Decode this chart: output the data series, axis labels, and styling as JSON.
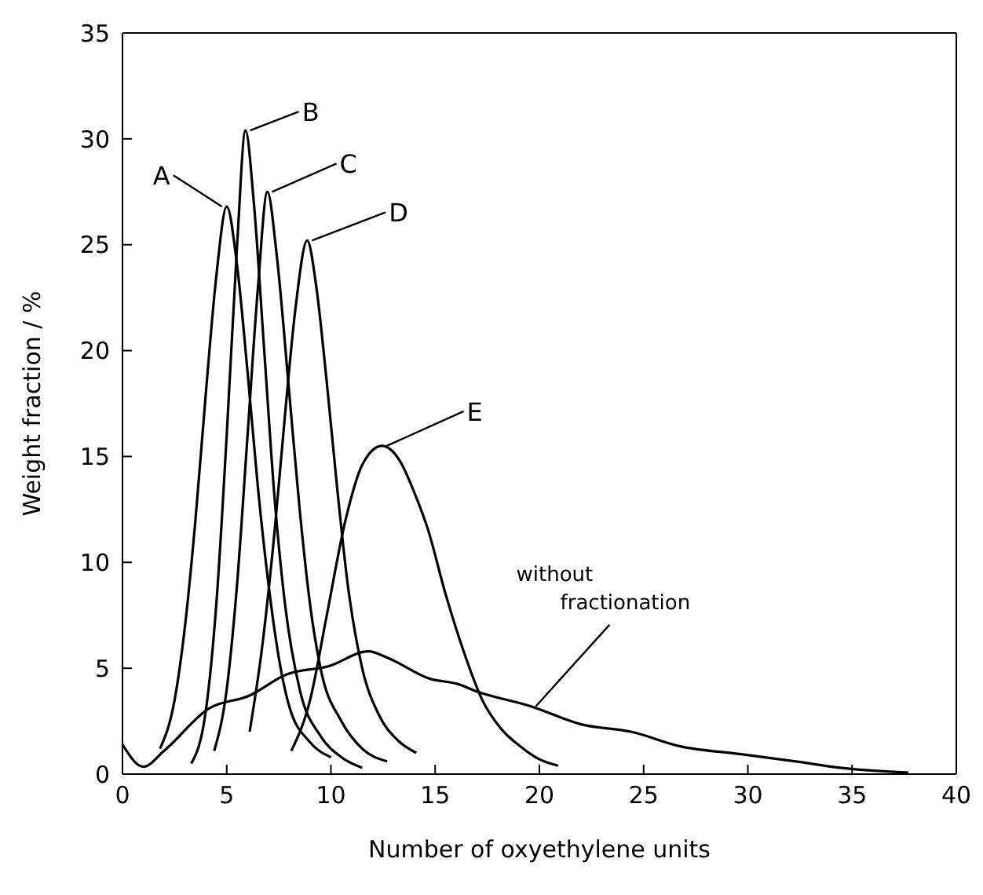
{
  "chart_data": {
    "type": "line",
    "xlabel": "Number of oxyethylene units",
    "ylabel": "Weight  fraction  / %",
    "xlim": [
      0,
      40
    ],
    "ylim": [
      0,
      35
    ],
    "xticks": [
      0,
      5,
      10,
      15,
      20,
      25,
      30,
      35,
      40
    ],
    "yticks": [
      0,
      5,
      10,
      15,
      20,
      25,
      30,
      35
    ],
    "grid": false,
    "legend": "top",
    "series": [
      {
        "name": "A",
        "color": "#000000",
        "x": [
          1.8,
          2.5,
          3,
          3.5,
          4,
          4.5,
          5,
          5.5,
          6,
          6.5,
          7,
          7.5,
          8,
          9,
          10
        ],
        "values": [
          1.2,
          3.5,
          7,
          12,
          18,
          23.5,
          26.8,
          24,
          19,
          13.5,
          9,
          5.5,
          3.2,
          1.5,
          0.8
        ]
      },
      {
        "name": "B",
        "color": "#000000",
        "x": [
          3.3,
          4,
          4.5,
          5,
          5.5,
          5.9,
          6.3,
          6.8,
          7.3,
          7.8,
          8.5,
          9.5,
          10.5,
          11.5
        ],
        "values": [
          0.5,
          3,
          8,
          16,
          25,
          30.4,
          27,
          20,
          13,
          8,
          4,
          1.8,
          0.8,
          0.3
        ]
      },
      {
        "name": "C",
        "color": "#000000",
        "x": [
          4.4,
          5,
          5.5,
          6,
          6.5,
          6.95,
          7.4,
          8,
          8.5,
          9,
          9.5,
          10.5,
          11.5,
          12.7
        ],
        "values": [
          1.1,
          4,
          9,
          16,
          23,
          27.5,
          24.5,
          18,
          12.5,
          8,
          5,
          2.5,
          1.2,
          0.6
        ]
      },
      {
        "name": "D",
        "color": "#000000",
        "x": [
          6.1,
          6.7,
          7.3,
          7.8,
          8.3,
          8.86,
          9.3,
          9.8,
          10.3,
          10.8,
          11.5,
          12.3,
          13.2,
          14.1
        ],
        "values": [
          2,
          6,
          11.5,
          17,
          22,
          25.2,
          23,
          18.5,
          13.5,
          9,
          5,
          2.8,
          1.6,
          1
        ]
      },
      {
        "name": "E",
        "color": "#000000",
        "x": [
          8.1,
          9,
          9.8,
          10.7,
          11.5,
          12.45,
          13.3,
          14,
          14.64,
          15.5,
          16.4,
          17.26,
          18.2,
          19.1,
          20,
          20.9
        ],
        "values": [
          1.1,
          3.5,
          7.5,
          12,
          14.6,
          15.5,
          14.8,
          13.3,
          11.6,
          8.5,
          5.7,
          3.5,
          2.1,
          1.3,
          0.7,
          0.4
        ]
      },
      {
        "name": "without fractionation",
        "color": "#000000",
        "x": [
          0,
          1,
          2,
          4.15,
          6.07,
          7.86,
          9.9,
          11.8,
          12.7,
          14.76,
          16.1,
          17,
          19.6,
          22,
          24.4,
          26.8,
          29.6,
          32.3,
          34.4,
          37.7
        ],
        "values": [
          1.4,
          0.35,
          1.1,
          3.1,
          3.7,
          4.7,
          5.1,
          5.8,
          5.5,
          4.5,
          4.25,
          3.9,
          3.2,
          2.35,
          2,
          1.3,
          0.95,
          0.6,
          0.3,
          0.07
        ]
      }
    ]
  }
}
